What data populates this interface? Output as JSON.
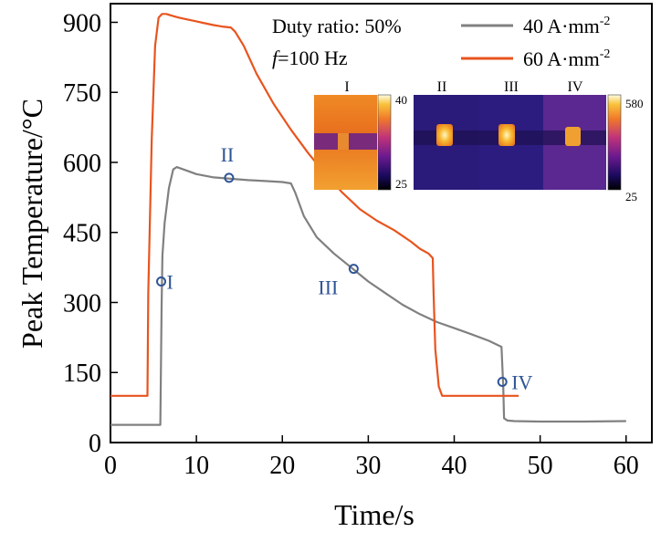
{
  "chart_data": {
    "type": "line",
    "xlabel": "Time/s",
    "ylabel": "Peak Temperature/°C",
    "xlim": [
      0,
      63
    ],
    "ylim": [
      0,
      940
    ],
    "xticks": [
      0,
      10,
      20,
      30,
      40,
      50,
      60
    ],
    "yticks": [
      0,
      150,
      300,
      450,
      600,
      750,
      900
    ],
    "grid": false,
    "legend_position": "top-right",
    "annotations": {
      "duty_ratio": "Duty ratio: 50%",
      "frequency_symbol": "f",
      "frequency_value": "=100 Hz"
    },
    "series": [
      {
        "name": "40 A·mm",
        "name_superscript": "-2",
        "color": "#808080",
        "x": [
          0,
          4,
          5.8,
          5.95,
          6.05,
          6.3,
          6.8,
          7.3,
          7.7,
          8.5,
          10,
          12,
          14,
          16,
          18,
          20,
          21,
          21.5,
          22.5,
          24,
          26,
          28,
          30,
          32,
          34,
          36,
          38,
          40,
          42,
          44,
          45.5,
          45.7,
          45.8,
          46.2,
          47,
          50,
          55,
          60
        ],
        "y": [
          38,
          38,
          38,
          290,
          400,
          470,
          545,
          585,
          590,
          585,
          575,
          568,
          565,
          562,
          560,
          558,
          555,
          535,
          485,
          440,
          405,
          375,
          345,
          320,
          295,
          275,
          258,
          245,
          232,
          218,
          205,
          120,
          52,
          47,
          46,
          45,
          45,
          46
        ]
      },
      {
        "name": "60 A·mm",
        "name_superscript": "-2",
        "color": "#E8541E",
        "x": [
          0,
          4.3,
          4.4,
          4.8,
          5.2,
          5.6,
          6,
          6.5,
          7,
          8,
          9,
          10,
          11,
          12,
          13,
          14,
          14.5,
          15.5,
          17,
          19,
          21,
          23,
          25,
          27,
          29,
          31,
          33,
          35,
          36,
          37,
          37.5,
          37.6,
          37.8,
          38.2,
          38.6,
          39,
          40,
          42,
          45,
          47.5
        ],
        "y": [
          100,
          100,
          320,
          650,
          850,
          910,
          918,
          918,
          915,
          910,
          906,
          902,
          898,
          894,
          891,
          889,
          880,
          850,
          790,
          725,
          670,
          620,
          575,
          535,
          500,
          475,
          455,
          430,
          415,
          405,
          395,
          320,
          200,
          120,
          100,
          100,
          100,
          100,
          100,
          100
        ]
      }
    ],
    "markers": [
      {
        "label": "I",
        "x": 5.9,
        "y": 345
      },
      {
        "label": "II",
        "x": 13.8,
        "y": 567
      },
      {
        "label": "III",
        "x": 28.3,
        "y": 372
      },
      {
        "label": "IV",
        "x": 45.6,
        "y": 130
      }
    ],
    "marker_color": "#2F5597",
    "inset": {
      "panel_1": {
        "label": "I",
        "colorbar_max": "40",
        "colorbar_min": "25"
      },
      "panel_2": {
        "labels": [
          "II",
          "III",
          "IV"
        ],
        "colorbar_max": "580",
        "colorbar_min": "25"
      }
    }
  }
}
